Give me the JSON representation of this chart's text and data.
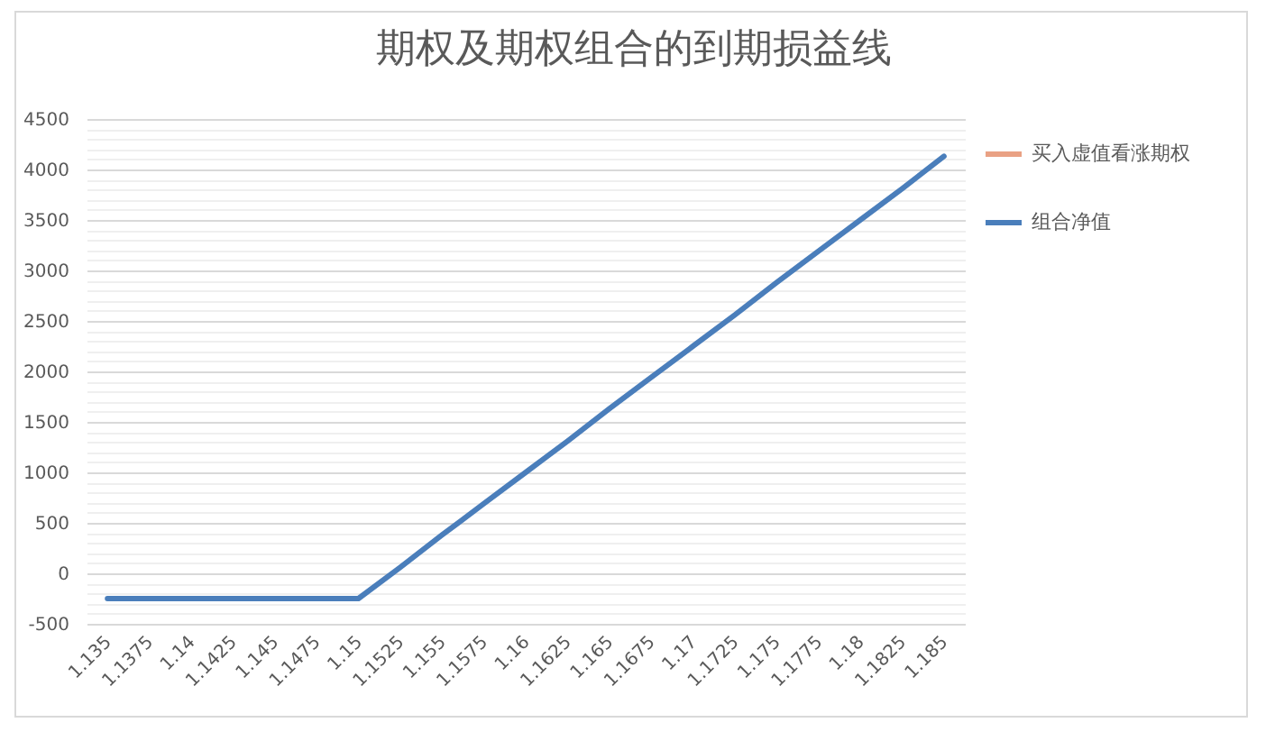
{
  "chart_data": {
    "type": "line",
    "title": "期权及期权组合的到期损益线",
    "categories": [
      "1.135",
      "1.1375",
      "1.14",
      "1.1425",
      "1.145",
      "1.1475",
      "1.15",
      "1.1525",
      "1.155",
      "1.1575",
      "1.16",
      "1.1625",
      "1.165",
      "1.1675",
      "1.17",
      "1.1725",
      "1.175",
      "1.1775",
      "1.18",
      "1.1825",
      "1.185"
    ],
    "series": [
      {
        "name": "买入虚值看涨期权",
        "color": "#e9a184",
        "values": [
          null,
          null,
          null,
          null,
          null,
          null,
          null,
          null,
          null,
          null,
          null,
          null,
          null,
          null,
          null,
          null,
          null,
          null,
          null,
          null,
          null
        ]
      },
      {
        "name": "组合净值",
        "color": "#4a7ebb",
        "values": [
          -250,
          -250,
          -250,
          -250,
          -250,
          -250,
          -250,
          60,
          380,
          690,
          1000,
          1310,
          1630,
          1940,
          2250,
          2560,
          2880,
          3190,
          3500,
          3810,
          4130
        ]
      }
    ],
    "ylim": [
      -500,
      4500
    ],
    "yticks": [
      -500,
      {
        "value": -400,
        "label": null
      },
      {
        "value": -300,
        "label": null
      },
      {
        "value": -200,
        "label": null
      },
      {
        "value": -100,
        "label": null
      },
      0,
      {
        "value": 100,
        "label": null
      },
      {
        "value": 200,
        "label": null
      },
      {
        "value": 300,
        "label": null
      },
      {
        "value": 400,
        "label": null
      },
      500,
      {
        "value": 600,
        "label": null
      },
      {
        "value": 700,
        "label": null
      },
      {
        "value": 800,
        "label": null
      },
      {
        "value": 900,
        "label": null
      },
      1000,
      {
        "value": 1100,
        "label": null
      },
      {
        "value": 1200,
        "label": null
      },
      {
        "value": 1300,
        "label": null
      },
      {
        "value": 1400,
        "label": null
      },
      1500,
      {
        "value": 1600,
        "label": null
      },
      {
        "value": 1700,
        "label": null
      },
      {
        "value": 1800,
        "label": null
      },
      {
        "value": 1900,
        "label": null
      },
      2000,
      {
        "value": 2100,
        "label": null
      },
      {
        "value": 2200,
        "label": null
      },
      {
        "value": 2300,
        "label": null
      },
      {
        "value": 2400,
        "label": null
      },
      2500,
      {
        "value": 2600,
        "label": null
      },
      {
        "value": 2700,
        "label": null
      },
      {
        "value": 2800,
        "label": null
      },
      {
        "value": 2900,
        "label": null
      },
      3000,
      {
        "value": 3100,
        "label": null
      },
      {
        "value": 3200,
        "label": null
      },
      {
        "value": 3300,
        "label": null
      },
      {
        "value": 3400,
        "label": null
      },
      3500,
      {
        "value": 3600,
        "label": null
      },
      {
        "value": 3700,
        "label": null
      },
      {
        "value": 3800,
        "label": null
      },
      {
        "value": 3900,
        "label": null
      },
      4000,
      {
        "value": 4100,
        "label": null
      },
      {
        "value": 4200,
        "label": null
      },
      {
        "value": 4300,
        "label": null
      },
      {
        "value": 4400,
        "label": null
      },
      4500
    ],
    "grid": "y",
    "legend": "right"
  }
}
